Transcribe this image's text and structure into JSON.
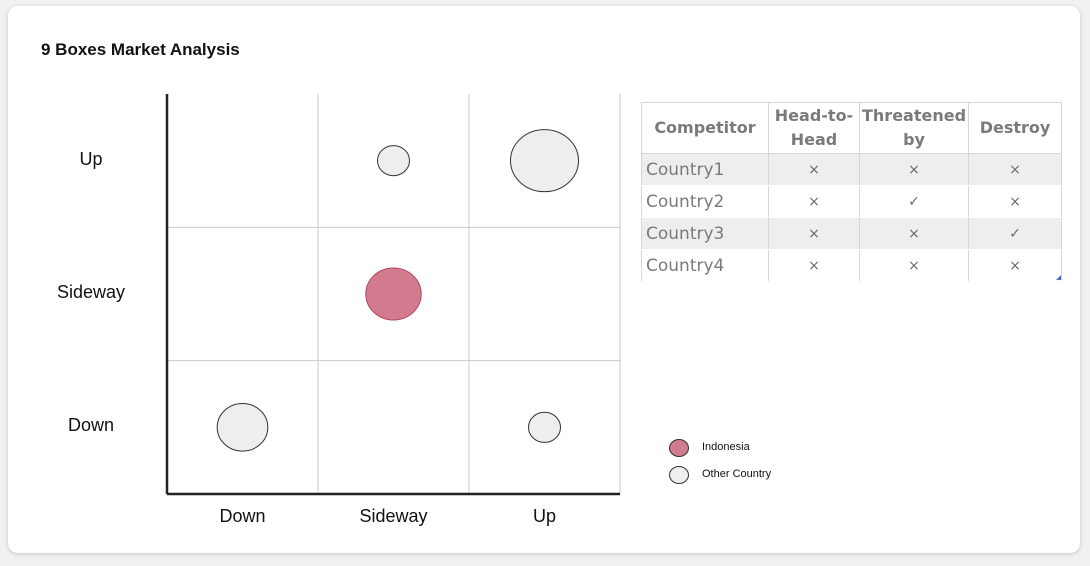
{
  "title": "9 Boxes Market Analysis",
  "chart_data": {
    "type": "scatter",
    "title": "9 Boxes Market Analysis",
    "x_categories": [
      "Down",
      "Sideway",
      "Up"
    ],
    "y_categories": [
      "Down",
      "Sideway",
      "Up"
    ],
    "grid": true,
    "points": [
      {
        "x": "Sideway",
        "y": "Up",
        "size": 1,
        "group": "Other Country"
      },
      {
        "x": "Up",
        "y": "Up",
        "size": 4,
        "group": "Other Country"
      },
      {
        "x": "Sideway",
        "y": "Sideway",
        "size": 3,
        "group": "Indonesia"
      },
      {
        "x": "Down",
        "y": "Down",
        "size": 2.5,
        "group": "Other Country"
      },
      {
        "x": "Up",
        "y": "Down",
        "size": 1,
        "group": "Other Country"
      }
    ],
    "legend": {
      "placement": "bottom-right",
      "items": [
        {
          "label": "Indonesia",
          "color": "#d27b8e"
        },
        {
          "label": "Other Country",
          "color": "#eeeeee"
        }
      ]
    }
  },
  "table": {
    "headers": [
      "Competitor",
      "Head-to-Head",
      "Threatened by",
      "Destroy"
    ],
    "rows": [
      {
        "name": "Country1",
        "marks": [
          "×",
          "×",
          "×"
        ]
      },
      {
        "name": "Country2",
        "marks": [
          "×",
          "✓",
          "×"
        ]
      },
      {
        "name": "Country3",
        "marks": [
          "×",
          "×",
          "✓"
        ]
      },
      {
        "name": "Country4",
        "marks": [
          "×",
          "×",
          "×"
        ]
      }
    ]
  }
}
